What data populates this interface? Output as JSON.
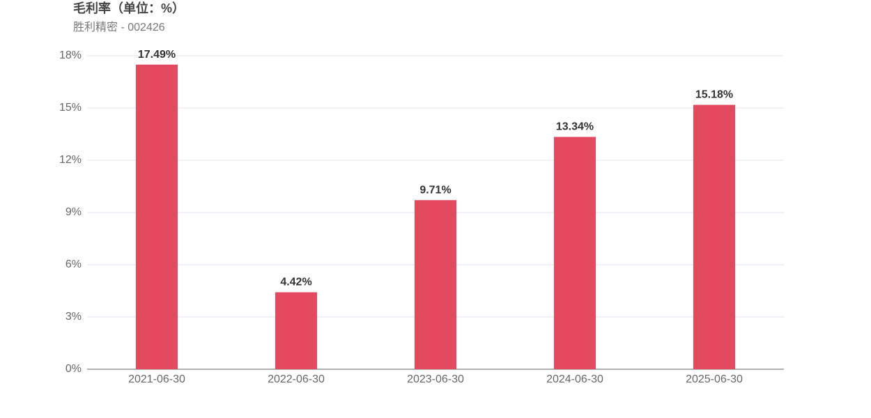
{
  "chart_data": {
    "type": "bar",
    "title": "毛利率（单位：%）",
    "subtitle": "胜利精密 - 002426",
    "categories": [
      "2021-06-30",
      "2022-06-30",
      "2023-06-30",
      "2024-06-30",
      "2025-06-30"
    ],
    "values": [
      17.49,
      4.42,
      9.71,
      13.34,
      15.18
    ],
    "value_labels": [
      "17.49%",
      "4.42%",
      "9.71%",
      "13.34%",
      "15.18%"
    ],
    "color": "#e34a60",
    "ylim": [
      0,
      18
    ],
    "yticks": [
      {
        "value": 0,
        "label": "0%"
      },
      {
        "value": 3,
        "label": "3%"
      },
      {
        "value": 6,
        "label": "6%"
      },
      {
        "value": 9,
        "label": "9%"
      },
      {
        "value": 12,
        "label": "12%"
      },
      {
        "value": 15,
        "label": "15%"
      },
      {
        "value": 18,
        "label": "18%"
      }
    ],
    "grid": true
  }
}
